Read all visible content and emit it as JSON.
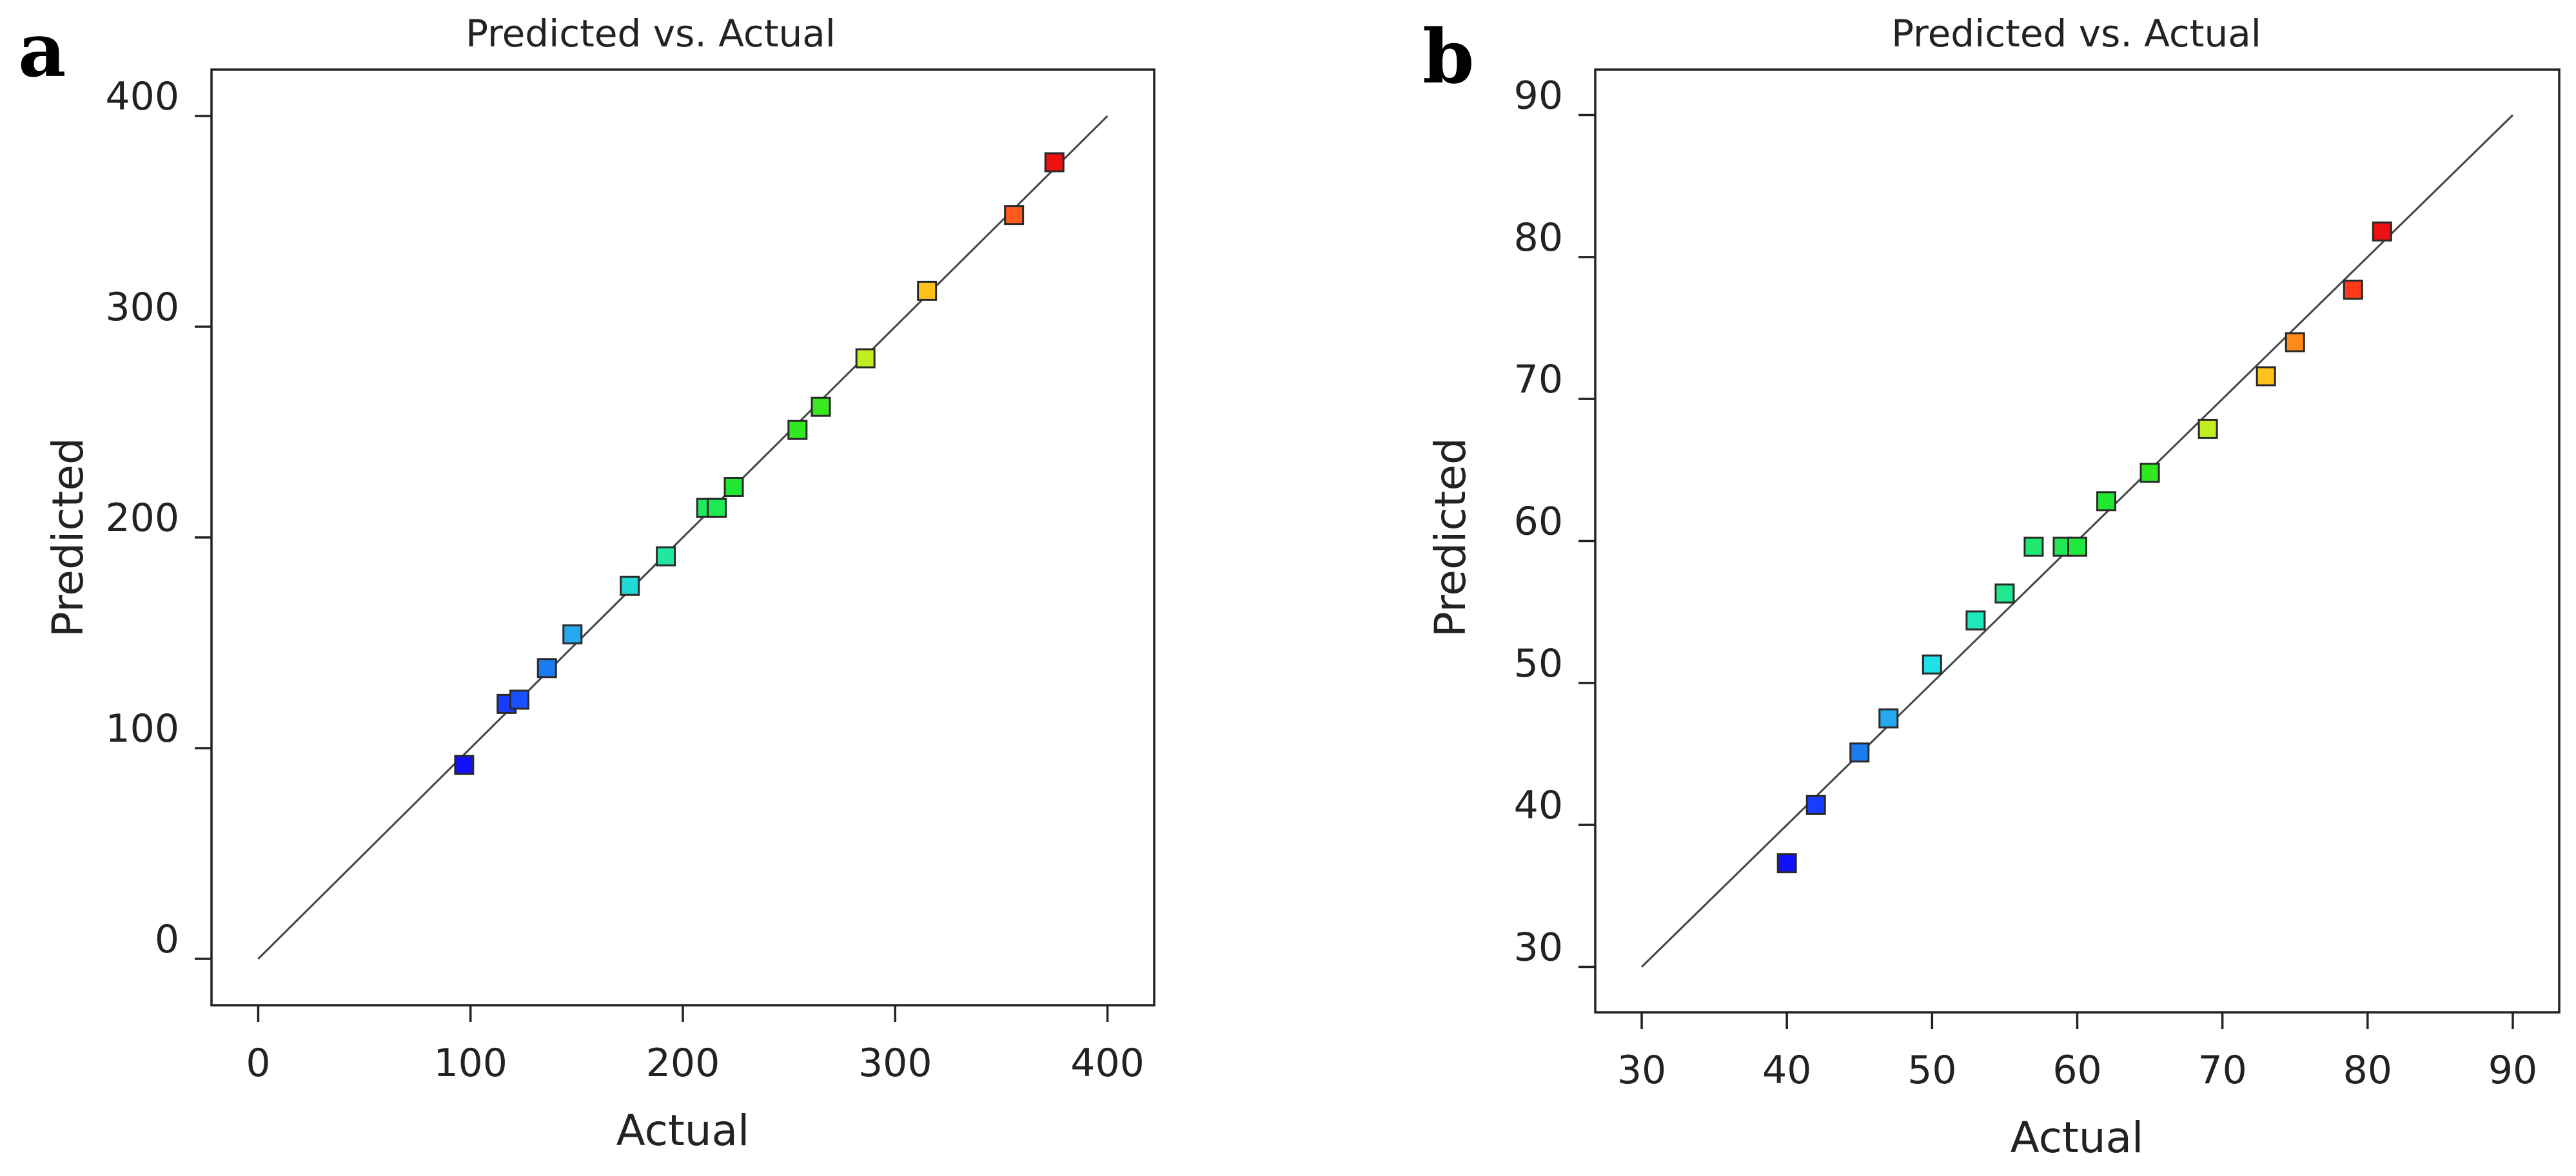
{
  "chart_data": [
    {
      "panel": "a",
      "type": "scatter",
      "title": "Predicted vs. Actual",
      "xlabel": "Actual",
      "ylabel": "Predicted",
      "xlim": [
        -22,
        422
      ],
      "ylim": [
        -22,
        422
      ],
      "xticks": [
        0,
        100,
        200,
        300,
        400
      ],
      "yticks": [
        0,
        100,
        200,
        300,
        400
      ],
      "reference_line": [
        [
          0,
          0
        ],
        [
          400,
          400
        ]
      ],
      "points": [
        {
          "x": 97,
          "y": 92,
          "color": "#1010ff"
        },
        {
          "x": 117,
          "y": 121,
          "color": "#1a3cff"
        },
        {
          "x": 123,
          "y": 123,
          "color": "#1a50ff"
        },
        {
          "x": 136,
          "y": 138,
          "color": "#1a7cf0"
        },
        {
          "x": 148,
          "y": 154,
          "color": "#25a8f0"
        },
        {
          "x": 175,
          "y": 177,
          "color": "#20d8d8"
        },
        {
          "x": 192,
          "y": 191,
          "color": "#20e8a0"
        },
        {
          "x": 211,
          "y": 214,
          "color": "#20e860"
        },
        {
          "x": 216,
          "y": 214,
          "color": "#20e850"
        },
        {
          "x": 224,
          "y": 224,
          "color": "#20e830"
        },
        {
          "x": 254,
          "y": 251,
          "color": "#30e820"
        },
        {
          "x": 265,
          "y": 262,
          "color": "#3ae820"
        },
        {
          "x": 286,
          "y": 285,
          "color": "#c0ee20"
        },
        {
          "x": 315,
          "y": 317,
          "color": "#ffc21a"
        },
        {
          "x": 356,
          "y": 353,
          "color": "#ff5a1a"
        },
        {
          "x": 375,
          "y": 378,
          "color": "#ee1010"
        }
      ]
    },
    {
      "panel": "b",
      "type": "scatter",
      "title": "Predicted vs. Actual",
      "xlabel": "Actual",
      "ylabel": "Predicted",
      "xlim": [
        26.8,
        93.2
      ],
      "ylim": [
        26.8,
        93.2
      ],
      "xticks": [
        30,
        40,
        50,
        60,
        70,
        80,
        90
      ],
      "yticks": [
        30,
        40,
        50,
        60,
        70,
        80,
        90
      ],
      "reference_line": [
        [
          30,
          30
        ],
        [
          90,
          90
        ]
      ],
      "points": [
        {
          "x": 40,
          "y": 37.3,
          "color": "#1010ff"
        },
        {
          "x": 42,
          "y": 41.4,
          "color": "#1a3cff"
        },
        {
          "x": 45,
          "y": 45.1,
          "color": "#1a7cf0"
        },
        {
          "x": 47,
          "y": 47.5,
          "color": "#25a8f0"
        },
        {
          "x": 50,
          "y": 51.3,
          "color": "#20e0e8"
        },
        {
          "x": 53,
          "y": 54.4,
          "color": "#20e8b8"
        },
        {
          "x": 55,
          "y": 56.3,
          "color": "#20e890"
        },
        {
          "x": 57,
          "y": 59.6,
          "color": "#20e870"
        },
        {
          "x": 59,
          "y": 59.6,
          "color": "#20e850"
        },
        {
          "x": 60,
          "y": 59.6,
          "color": "#20e840"
        },
        {
          "x": 62,
          "y": 62.8,
          "color": "#20e830"
        },
        {
          "x": 65,
          "y": 64.8,
          "color": "#30e820"
        },
        {
          "x": 69,
          "y": 67.9,
          "color": "#c0ee20"
        },
        {
          "x": 73,
          "y": 71.6,
          "color": "#ffc21a"
        },
        {
          "x": 75,
          "y": 74.0,
          "color": "#ff8a1a"
        },
        {
          "x": 79,
          "y": 77.7,
          "color": "#ff3a1a"
        },
        {
          "x": 81,
          "y": 81.8,
          "color": "#ee1010"
        }
      ]
    }
  ]
}
